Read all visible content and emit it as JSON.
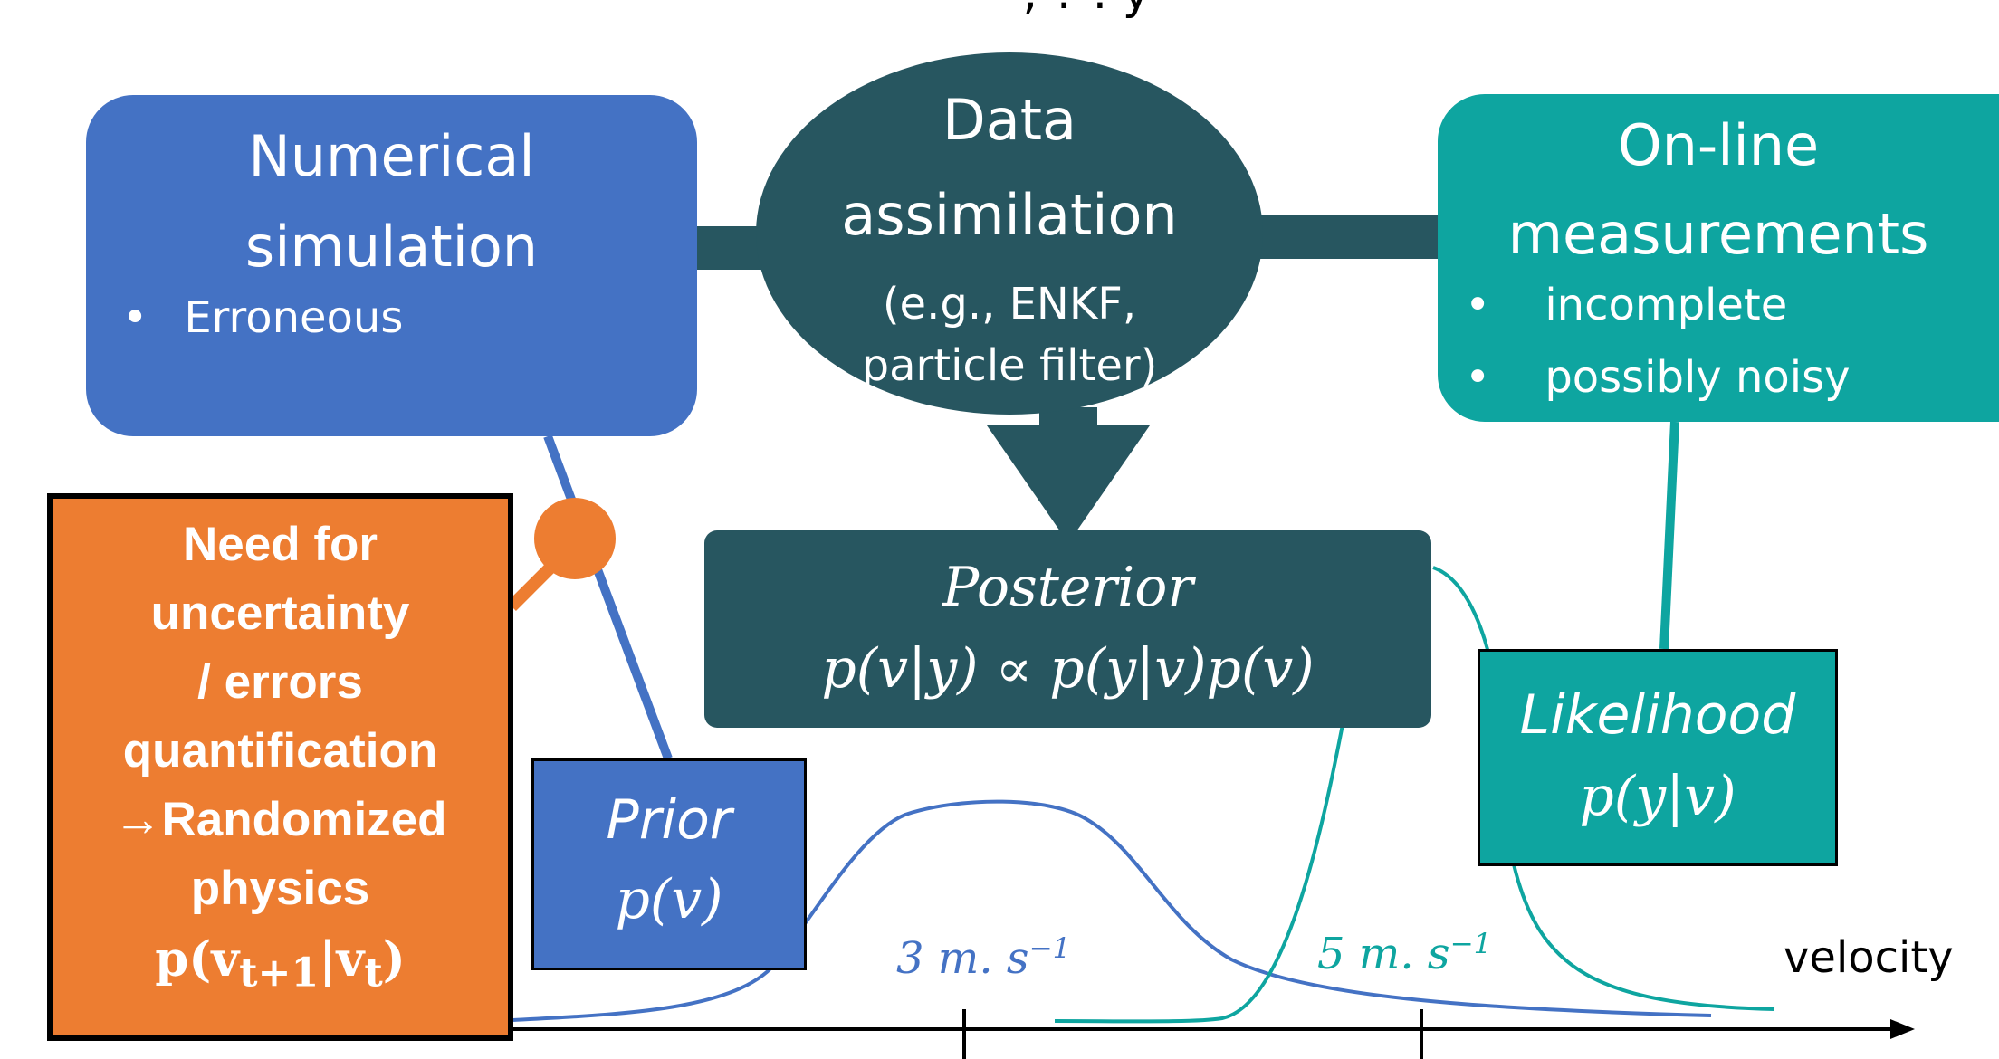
{
  "colors": {
    "simulation": "#4472c4",
    "measurements": "#0ea5a0",
    "assimilation": "#275660",
    "uncertainty": "#ed7d31"
  },
  "top_fragment": ", ? . y",
  "simulation": {
    "title_line1": "Numerical",
    "title_line2": "simulation",
    "bullet": "Erroneous"
  },
  "assimilation": {
    "title_line1": "Data",
    "title_line2": "assimilation",
    "sub_line1": "(e.g., ENKF,",
    "sub_line2": "particle filter)"
  },
  "measurements": {
    "title_line1": "On-line",
    "title_line2": "measurements",
    "bullet1": "incomplete",
    "bullet2": "possibly noisy"
  },
  "posterior": {
    "title": "Posterior",
    "formula": "p(v|y) ∝ p(y|v)p(v)"
  },
  "uncertainty": {
    "line1": "Need for",
    "line2": "uncertainty",
    "line3": "/ errors",
    "line4": "quantification",
    "line5": "→Randomized",
    "line6": "physics",
    "formula": "p(v",
    "formula_sub1": "t+1",
    "formula_mid": "|v",
    "formula_sub2": "t",
    "formula_end": ")"
  },
  "prior": {
    "title": "Prior",
    "formula": "p(v)"
  },
  "likelihood": {
    "title": "Likelihood",
    "formula": "p(y|v)"
  },
  "axis": {
    "tick1_value": "3 m. s",
    "tick1_exp": "−1",
    "tick2_value": "5 m. s",
    "tick2_exp": "−1",
    "xlabel": "velocity"
  }
}
